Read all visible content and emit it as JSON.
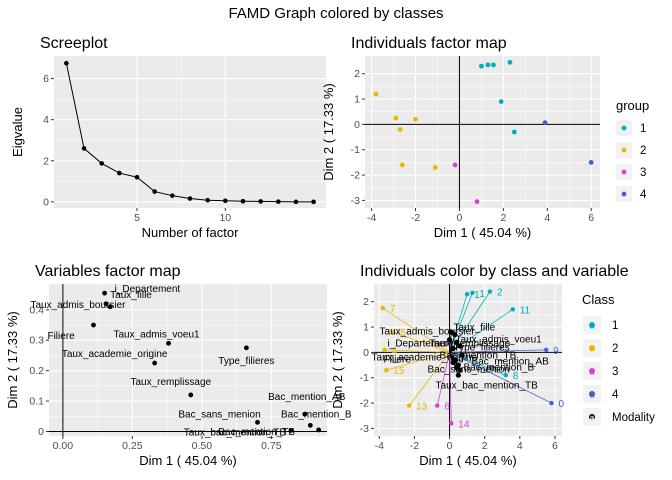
{
  "figure_title": "FAMD Graph colored by classes",
  "colors": {
    "group": {
      "1": "#00AFBB",
      "2": "#E7B800",
      "3": "#D83FD1",
      "4": "#3E62CF"
    },
    "panel_bg": "#EBEBEB",
    "grid": "#FFFFFF",
    "modality": "#000000"
  },
  "chart_data": [
    {
      "type": "line",
      "title": "Screeplot",
      "xlabel": "Number of factor",
      "ylabel": "Eigvalue",
      "xlim": [
        0.3,
        15.7
      ],
      "ylim": [
        -0.3,
        7.1
      ],
      "xticks": [
        5,
        10
      ],
      "yticks": [
        0,
        2,
        4,
        6
      ],
      "x": [
        1,
        2,
        3,
        4,
        5,
        6,
        7,
        8,
        9,
        10,
        11,
        12,
        13,
        14,
        15
      ],
      "y": [
        6.75,
        2.6,
        1.87,
        1.4,
        1.2,
        0.5,
        0.3,
        0.16,
        0.08,
        0.05,
        0.03,
        0.02,
        0.01,
        0.0,
        0.0
      ],
      "grid": true
    },
    {
      "type": "scatter",
      "title": "Individuals factor map",
      "xlabel": "Dim 1  ( 45.04 %)",
      "ylabel": "Dim 2  ( 17.33 %)",
      "xlim": [
        -4.3,
        6.4
      ],
      "ylim": [
        -3.3,
        2.7
      ],
      "xticks": [
        -4,
        -2,
        0,
        2,
        4,
        6
      ],
      "yticks": [
        -3,
        -2,
        -1,
        0,
        1,
        2
      ],
      "legend": {
        "title": "group",
        "entries": [
          "1",
          "2",
          "3",
          "4"
        ],
        "position": "right"
      },
      "points": [
        {
          "x": 1.0,
          "y": 2.3,
          "group": "1"
        },
        {
          "x": 1.3,
          "y": 2.35,
          "group": "1"
        },
        {
          "x": 1.55,
          "y": 2.35,
          "group": "1"
        },
        {
          "x": 2.3,
          "y": 2.45,
          "group": "1"
        },
        {
          "x": 1.9,
          "y": 0.9,
          "group": "1"
        },
        {
          "x": 2.5,
          "y": -0.3,
          "group": "1"
        },
        {
          "x": -3.8,
          "y": 1.2,
          "group": "2"
        },
        {
          "x": -2.9,
          "y": 0.25,
          "group": "2"
        },
        {
          "x": -2.7,
          "y": -0.2,
          "group": "2"
        },
        {
          "x": -2.0,
          "y": 0.2,
          "group": "2"
        },
        {
          "x": -2.6,
          "y": -1.6,
          "group": "2"
        },
        {
          "x": -1.1,
          "y": -1.7,
          "group": "2"
        },
        {
          "x": -0.2,
          "y": -1.6,
          "group": "3"
        },
        {
          "x": 0.8,
          "y": -3.05,
          "group": "3"
        },
        {
          "x": 3.9,
          "y": 0.07,
          "group": "4"
        },
        {
          "x": 6.0,
          "y": -1.5,
          "group": "4"
        }
      ],
      "grid": true
    },
    {
      "type": "scatter",
      "title": "Variables factor map",
      "xlabel": "Dim 1  ( 45.04 %)",
      "ylabel": "Dim 2  ( 17.33 %)",
      "xlim": [
        -0.05,
        0.95
      ],
      "ylim": [
        -0.015,
        0.485
      ],
      "xticks": [
        0.0,
        0.25,
        0.5,
        0.75
      ],
      "xtick_labels": [
        "0.00",
        "0.25",
        "0.50",
        "0.75"
      ],
      "yticks": [
        0.0,
        0.1,
        0.2,
        0.3,
        0.4
      ],
      "points": [
        {
          "label": "i_Departement",
          "x": 0.15,
          "y": 0.455
        },
        {
          "label": "Taux_admis_boursier",
          "x": 0.155,
          "y": 0.42
        },
        {
          "label": "Taux_fille",
          "x": 0.17,
          "y": 0.41
        },
        {
          "label": "Filiere",
          "x": 0.11,
          "y": 0.35
        },
        {
          "label": "Taux_admis_voeu1",
          "x": 0.38,
          "y": 0.29
        },
        {
          "label": "Type_filieres",
          "x": 0.66,
          "y": 0.275
        },
        {
          "label": "Taux_academie_origine",
          "x": 0.33,
          "y": 0.225
        },
        {
          "label": "Taux_remplissage",
          "x": 0.46,
          "y": 0.12
        },
        {
          "label": "Bac_mention_AB",
          "x": 0.87,
          "y": 0.057
        },
        {
          "label": "Bac_mention_B",
          "x": 0.89,
          "y": 0.02
        },
        {
          "label": "Bac_sans_menion",
          "x": 0.7,
          "y": 0.03
        },
        {
          "label": "Taux_bac_mention_TB",
          "x": 0.82,
          "y": 0.003
        },
        {
          "label": "Bac_mention_TB",
          "x": 0.92,
          "y": 0.005
        }
      ],
      "grid": true
    },
    {
      "type": "scatter",
      "title": "Individuals color by class and variable",
      "xlabel": "Dim 1  ( 45.04 %)",
      "ylabel": "Dim 2  ( 17.33 %)",
      "xlim": [
        -4.3,
        6.4
      ],
      "ylim": [
        -3.3,
        2.7
      ],
      "xticks": [
        -4,
        -2,
        0,
        2,
        4,
        6
      ],
      "yticks": [
        -3,
        -2,
        -1,
        0,
        1,
        2
      ],
      "legend": {
        "title": "Class",
        "entries": [
          "1",
          "2",
          "3",
          "4",
          "Modality"
        ],
        "position": "right"
      },
      "individuals": [
        {
          "id": "1",
          "x": 1.0,
          "y": 2.3,
          "class": "1"
        },
        {
          "id": "1",
          "x": 1.3,
          "y": 2.35,
          "class": "1"
        },
        {
          "id": "2",
          "x": 2.3,
          "y": 2.4,
          "class": "1"
        },
        {
          "id": "11",
          "x": 3.6,
          "y": 1.7,
          "class": "1"
        },
        {
          "id": "8",
          "x": 3.2,
          "y": -0.9,
          "class": "1"
        },
        {
          "id": "7",
          "x": -3.8,
          "y": 1.75,
          "class": "2"
        },
        {
          "id": "5",
          "x": -3.2,
          "y": 0.8,
          "class": "2"
        },
        {
          "id": "4",
          "x": -3.7,
          "y": 0.1,
          "class": "2"
        },
        {
          "id": "15",
          "x": -3.6,
          "y": -0.7,
          "class": "2"
        },
        {
          "id": "13",
          "x": -2.3,
          "y": -2.1,
          "class": "2"
        },
        {
          "id": "6",
          "x": -0.7,
          "y": -2.1,
          "class": "3"
        },
        {
          "id": "14",
          "x": 0.1,
          "y": -2.8,
          "class": "3"
        },
        {
          "id": "9",
          "x": 5.5,
          "y": 0.1,
          "class": "4"
        },
        {
          "id": "0",
          "x": 5.8,
          "y": -2.0,
          "class": "4"
        }
      ],
      "modalities": [
        {
          "label": "Taux_admis_boursier",
          "x": 0.1,
          "y": 0.8
        },
        {
          "label": "Taux_fille",
          "x": 0.3,
          "y": 0.7
        },
        {
          "label": "i_Departement",
          "x": 0.0,
          "y": 0.5
        },
        {
          "label": "Taux_admis_voeu1",
          "x": 0.4,
          "y": 0.4
        },
        {
          "label": "Type_filieres",
          "x": 0.6,
          "y": 0.25
        },
        {
          "label": "Filiere",
          "x": 0.2,
          "y": 0.15
        },
        {
          "label": "Bac_mention_AB",
          "x": 0.7,
          "y": -0.1
        },
        {
          "label": "Taux_remplissage",
          "x": 0.35,
          "y": -0.3
        },
        {
          "label": "Bac_mention_TB",
          "x": 0.5,
          "y": -0.5
        },
        {
          "label": "Taux_academie_origine",
          "x": 0.2,
          "y": -0.4
        },
        {
          "label": "Bac_sans_menion",
          "x": 0.4,
          "y": -0.6
        },
        {
          "label": "Bac_mention_B",
          "x": 0.6,
          "y": -0.7
        },
        {
          "label": "Taux_bac_mention_TB",
          "x": 0.5,
          "y": -0.9
        }
      ],
      "grid": true
    }
  ]
}
